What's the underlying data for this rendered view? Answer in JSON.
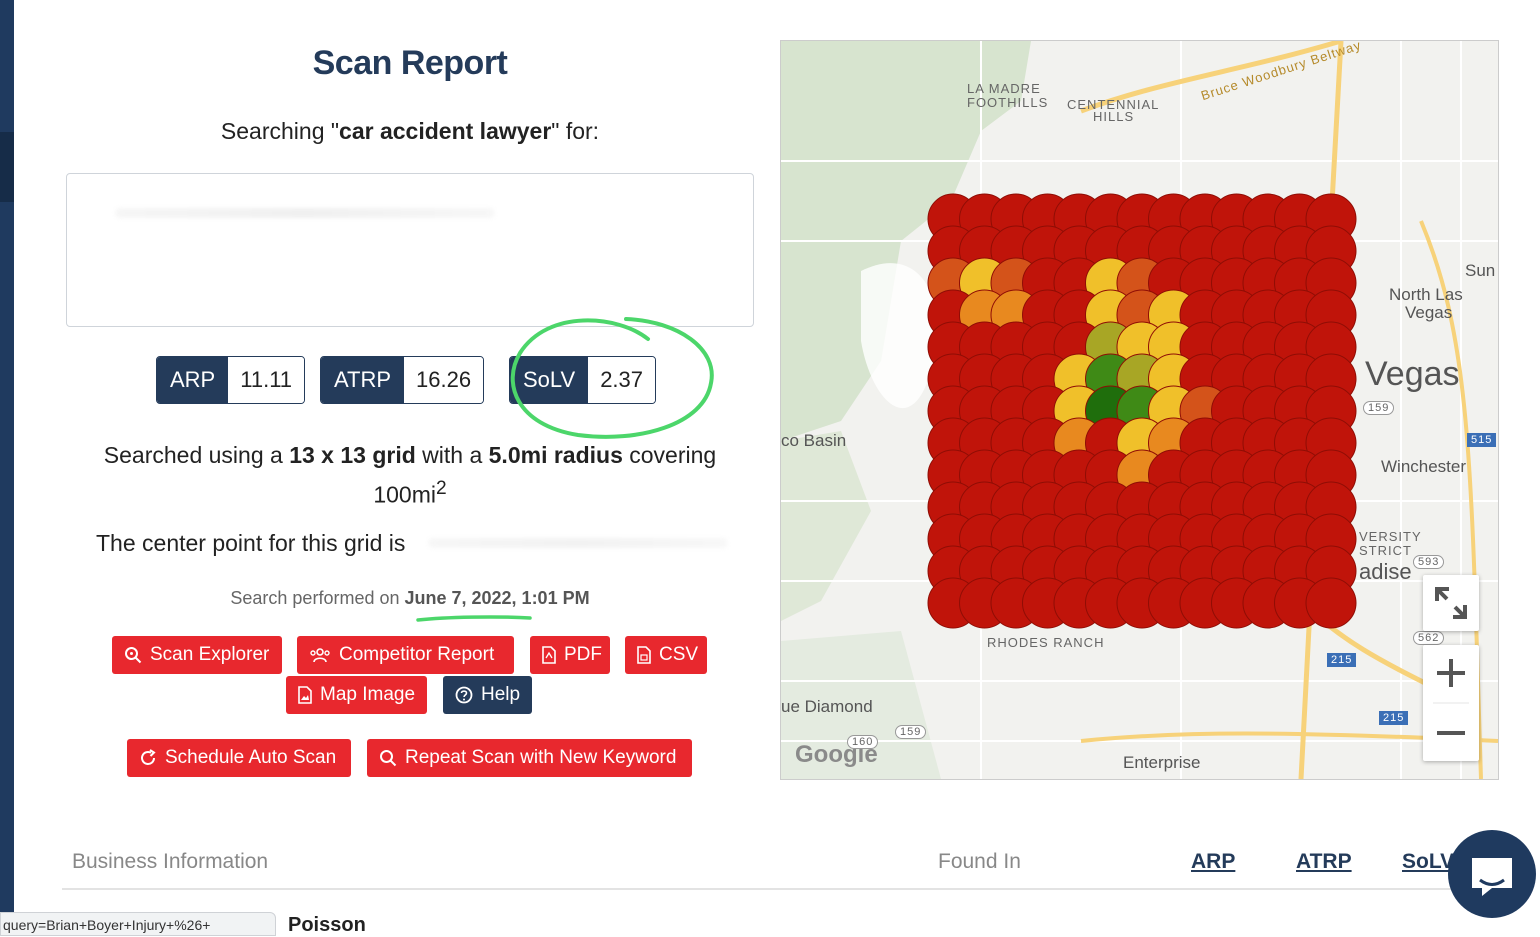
{
  "report": {
    "title": "Scan Report",
    "searching_prefix": "Searching \"",
    "keyword": "car accident lawyer",
    "searching_suffix": "\" for:"
  },
  "metrics": {
    "arp": {
      "label": "ARP",
      "value": "11.11"
    },
    "atrp": {
      "label": "ATRP",
      "value": "16.26"
    },
    "solv": {
      "label": "SoLV",
      "value": "2.37"
    }
  },
  "grid_info": {
    "prefix": "Searched using a ",
    "grid": "13 x 13 grid",
    "mid": " with a ",
    "radius": "5.0mi radius",
    "suffix": " covering",
    "area": "100mi",
    "area_sup": "2"
  },
  "center_point": {
    "text": "The center point for this grid is"
  },
  "performed": {
    "prefix": "Search performed on ",
    "date": "June 7, 2022, 1:01 PM"
  },
  "buttons": {
    "scan_explorer": "Scan Explorer",
    "competitor_report": "Competitor Report",
    "pdf": "PDF",
    "csv": "CSV",
    "map_image": "Map Image",
    "help": "Help",
    "schedule": "Schedule Auto Scan",
    "repeat": "Repeat Scan with New Keyword"
  },
  "map": {
    "labels": {
      "la_madre": "LA MADRE",
      "foothills": "FOOTHILLS",
      "centennial": "CENTENNIAL",
      "hills": "HILLS",
      "beltway": "Bruce Woodbury Beltway",
      "north_las": "North Las",
      "vegas_small": "Vegas",
      "vegas": "Vegas",
      "sun": "Sun",
      "basin": "co Basin",
      "winchester": "Winchester",
      "versity": "VERSITY",
      "strict": "STRICT",
      "adise": "adise",
      "rhodes": "RHODES RANCH",
      "diamond": "ue Diamond",
      "enterprise": "Enterprise",
      "google": "Google",
      "route_159a": "159",
      "route_159b": "159",
      "route_160": "160",
      "route_215a": "215",
      "route_215b": "215",
      "route_515": "515",
      "route_593": "593",
      "route_562": "562"
    },
    "pin_colors": {
      "red": "#c0140a",
      "dark_orange": "#d4531a",
      "orange": "#e8891f",
      "yellow": "#f0c02a",
      "olive": "#a8a625",
      "green": "#3f8a16",
      "dark_green": "#1f6e0c"
    }
  },
  "table": {
    "headers": {
      "business": "Business Information",
      "found": "Found In",
      "arp": "ARP",
      "atrp": "ATRP",
      "solv": "SoLV"
    },
    "first_row": "Poisson"
  },
  "statusbar": {
    "url": "query=Brian+Boyer+Injury+%26+"
  }
}
